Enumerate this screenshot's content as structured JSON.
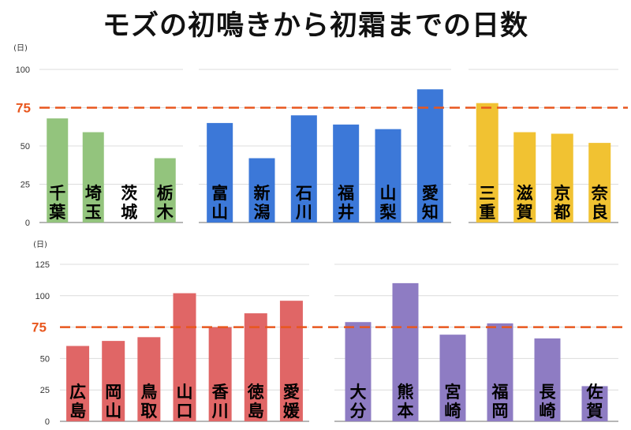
{
  "title": "モズの初鳴きから初霜までの日数",
  "unit": "(日)",
  "reference": {
    "value": 75,
    "label": "75",
    "color": "#e8571e"
  },
  "chart_data": [
    {
      "type": "bar",
      "ylim": [
        0,
        100
      ],
      "yticks": [
        "0",
        "25",
        "50",
        "75",
        "100"
      ],
      "groups": [
        {
          "color": "#93c47d",
          "categories": [
            "千葉",
            "埼玉",
            "茨城",
            "栃木"
          ],
          "values": [
            68,
            59,
            0,
            42
          ]
        },
        {
          "color": "#3c78d8",
          "categories": [
            "富山",
            "新潟",
            "石川",
            "福井",
            "山梨",
            "愛知"
          ],
          "values": [
            65,
            42,
            70,
            64,
            61,
            87
          ]
        },
        {
          "color": "#f1c232",
          "categories": [
            "三重",
            "滋賀",
            "京都",
            "奈良"
          ],
          "values": [
            78,
            59,
            58,
            52
          ]
        }
      ]
    },
    {
      "type": "bar",
      "ylim": [
        0,
        125
      ],
      "yticks": [
        "0",
        "25",
        "50",
        "75",
        "100",
        "125"
      ],
      "groups": [
        {
          "color": "#e06666",
          "categories": [
            "広島",
            "岡山",
            "鳥取",
            "山口",
            "香川",
            "徳島",
            "愛媛"
          ],
          "values": [
            60,
            64,
            67,
            102,
            75,
            86,
            96
          ]
        },
        {
          "color": "#8e7cc3",
          "categories": [
            "大分",
            "熊本",
            "宮崎",
            "福岡",
            "長崎",
            "佐賀"
          ],
          "values": [
            79,
            110,
            69,
            78,
            66,
            28
          ]
        }
      ]
    }
  ]
}
